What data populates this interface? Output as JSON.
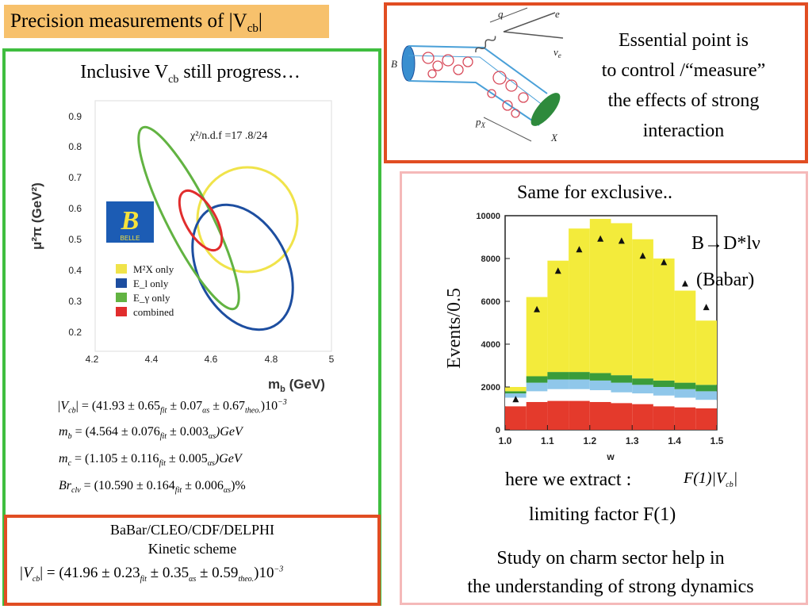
{
  "title": {
    "main": "Precision measurements of |V",
    "sub": "cb",
    "end": "|"
  },
  "left": {
    "heading": {
      "main": "Inclusive V",
      "sub": "cb",
      "end": " still progress…"
    },
    "plot": {
      "y_ticks": [
        "0.9",
        "0.8",
        "0.7",
        "0.6",
        "0.5",
        "0.4",
        "0.3",
        "0.2"
      ],
      "x_ticks": [
        "4.2",
        "4.4",
        "4.6",
        "4.8",
        "5"
      ],
      "y_label": "μ²π (GeV²)",
      "x_label": "m",
      "x_label_sub": "b",
      "x_label_end": " (GeV)",
      "chi2": "χ²/n.d.f =17  .8/24",
      "logo_letter": "B",
      "logo_text": "BELLE",
      "legend": [
        "M²X only",
        "E_l only",
        "E_γ only",
        "combined"
      ]
    },
    "equations": {
      "vcb": {
        "lhs": "|V",
        "sub": "cb",
        "rhs": "| = (41.93 ± 0.65",
        "fit": "fit",
        "a": " ± 0.07",
        "as": "αs",
        "b": " ± 0.67",
        "theo": "theo.",
        "c": ")10",
        "exp": "−3"
      },
      "mb": {
        "lhs": "m",
        "sub": "b",
        "rhs": " = (4.564 ± 0.076",
        "fit": "fit",
        "a": " ± 0.003",
        "as": "αs",
        "c": ")GeV"
      },
      "mc": {
        "lhs": "m",
        "sub": "c",
        "rhs": " = (1.105 ± 0.116",
        "fit": "fit",
        "a": " ± 0.005",
        "as": "αs",
        "c": ")GeV"
      },
      "br": {
        "lhs": "Br",
        "sub": "clν",
        "rhs": " = (10.590 ± 0.164",
        "fit": "fit",
        "a": " ± 0.006",
        "as": "αs",
        "c": ")%"
      }
    },
    "kinetic": {
      "line1": "BaBar/CLEO/CDF/DELPHI",
      "line2": "Kinetic scheme",
      "eq": {
        "lhs": "|V",
        "sub": "cb",
        "rhs": "| = (41.96 ± 0.23",
        "fit": "fit",
        "a": " ± 0.35",
        "as": "αs",
        "b": " ± 0.59",
        "theo": "theo.",
        "c": ")10",
        "exp": "−3"
      }
    }
  },
  "topright": {
    "diagram_labels": {
      "q": "q",
      "e": "e",
      "nu": "ν",
      "nu_sub": "e",
      "b": "B",
      "px": "p",
      "px_sub": "X",
      "x": "X"
    },
    "text": [
      "Essential point is",
      "to control /“measure”",
      "the effects of strong",
      "interaction"
    ]
  },
  "botright": {
    "heading": "Same for exclusive..",
    "decay_label": "B→D*lν",
    "source_label": "(Babar)",
    "y_axis_label": "Events/0.5",
    "x_axis_label": "w",
    "extract_text": "here we extract :",
    "extract_formula": "F(1)|V",
    "extract_formula_sub": "cb",
    "extract_formula_end": "|",
    "limiting": "limiting factor F(1)",
    "study_line1": "Study on charm sector help in",
    "study_line2": "the understanding of strong dynamics"
  },
  "chart_data": {
    "type": "bar",
    "x": [
      1.0,
      1.05,
      1.1,
      1.15,
      1.2,
      1.25,
      1.3,
      1.35,
      1.4,
      1.45,
      1.5
    ],
    "categories": [
      "1.0",
      "1.05",
      "1.1",
      "1.15",
      "1.2",
      "1.25",
      "1.3",
      "1.35",
      "1.4",
      "1.45"
    ],
    "x_ticks": [
      "1.0",
      "1.1",
      "1.2",
      "1.3",
      "1.4",
      "1.5"
    ],
    "y_ticks": [
      "0",
      "2000",
      "4000",
      "6000",
      "8000",
      "10000"
    ],
    "ylim": [
      0,
      10000
    ],
    "xlim": [
      1.0,
      1.5
    ],
    "series": [
      {
        "values": [
          1100,
          1300,
          1350,
          1350,
          1300,
          1250,
          1200,
          1100,
          1050,
          1000
        ],
        "color": "#e43a2c"
      },
      {
        "values": [
          400,
          500,
          550,
          550,
          550,
          500,
          500,
          500,
          450,
          400
        ],
        "color": "#ffffff"
      },
      {
        "values": [
          200,
          400,
          450,
          450,
          450,
          450,
          400,
          400,
          400,
          400
        ],
        "color": "#8fc7ea"
      },
      {
        "values": [
          100,
          300,
          350,
          350,
          350,
          350,
          300,
          300,
          300,
          300
        ],
        "color": "#3a9c3a"
      },
      {
        "values": [
          200,
          3700,
          5200,
          6700,
          7200,
          7100,
          6500,
          5700,
          4300,
          3000
        ],
        "color": "#f3eb3b"
      }
    ],
    "points": [
      1400,
      5600,
      7400,
      8400,
      8900,
      8800,
      8100,
      7800,
      6800,
      5700
    ]
  }
}
